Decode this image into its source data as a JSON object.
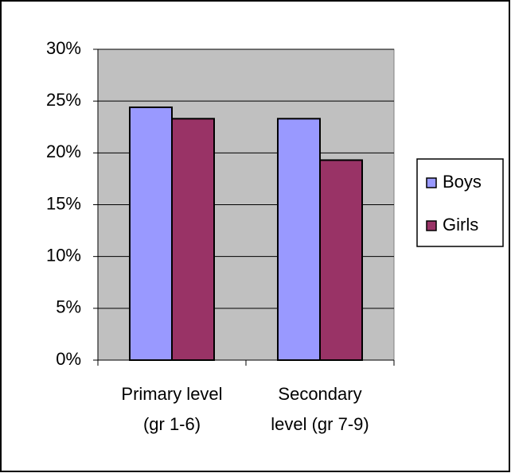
{
  "chart_data": {
    "type": "bar",
    "categories": [
      [
        "Primary level",
        "(gr 1-6)"
      ],
      [
        "Secondary",
        "level (gr 7-9)"
      ]
    ],
    "series": [
      {
        "name": "Boys",
        "color": "#9999ff",
        "values": [
          24.4,
          23.3
        ]
      },
      {
        "name": "Girls",
        "color": "#993366",
        "values": [
          23.3,
          19.3
        ]
      }
    ],
    "ylim": [
      0,
      30
    ],
    "yticks": [
      {
        "value": 0,
        "label": "0%"
      },
      {
        "value": 5,
        "label": "5%"
      },
      {
        "value": 10,
        "label": "10%"
      },
      {
        "value": 15,
        "label": "15%"
      },
      {
        "value": 20,
        "label": "20%"
      },
      {
        "value": 25,
        "label": "25%"
      },
      {
        "value": 30,
        "label": "30%"
      }
    ],
    "grid": true,
    "legend": "right",
    "plot_background": "#c0c0c0"
  }
}
